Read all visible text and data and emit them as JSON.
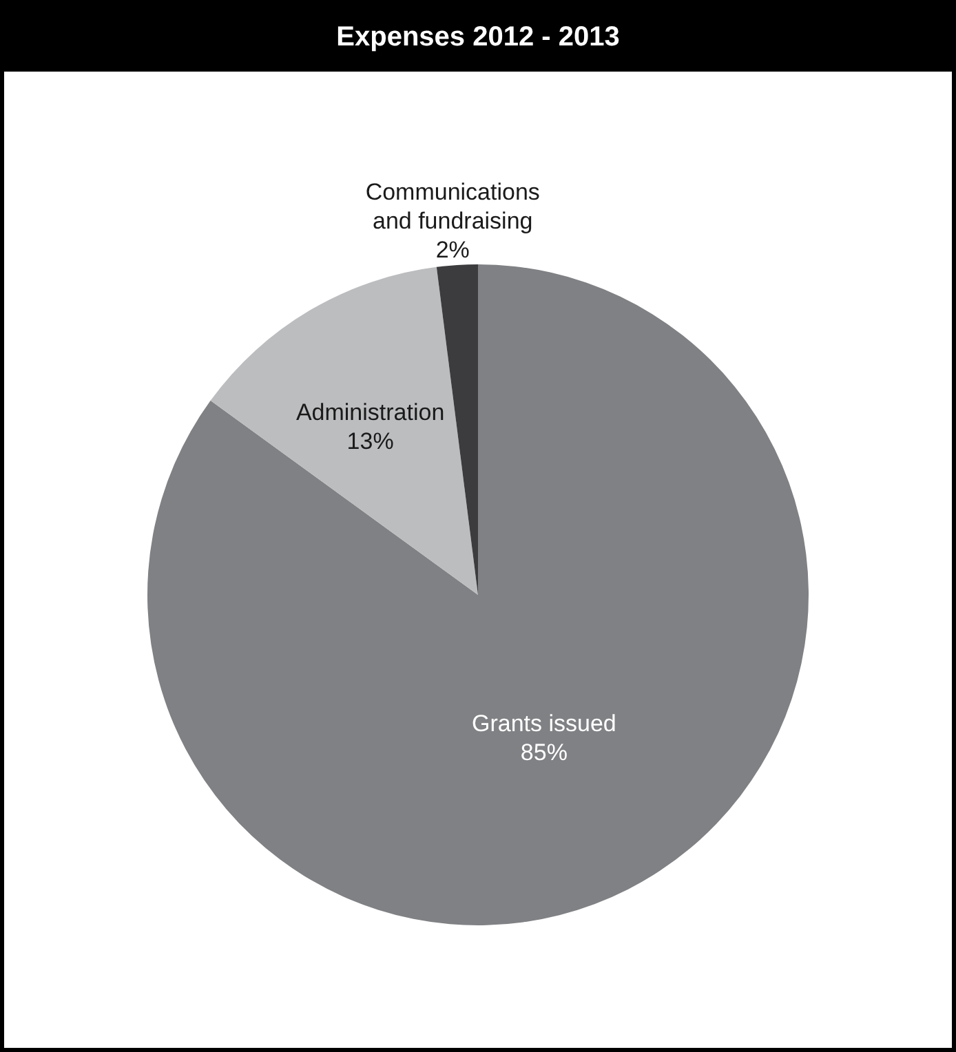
{
  "chart_data": {
    "type": "pie",
    "title": "Expenses 2012 - 2013",
    "categories": [
      "Grants issued",
      "Administration",
      "Communications and fundraising"
    ],
    "values": [
      85,
      13,
      2
    ],
    "value_labels": [
      "85%",
      "13%",
      "2%"
    ],
    "colors": [
      "#808184",
      "#bcbdbf",
      "#3c3c3e"
    ]
  }
}
